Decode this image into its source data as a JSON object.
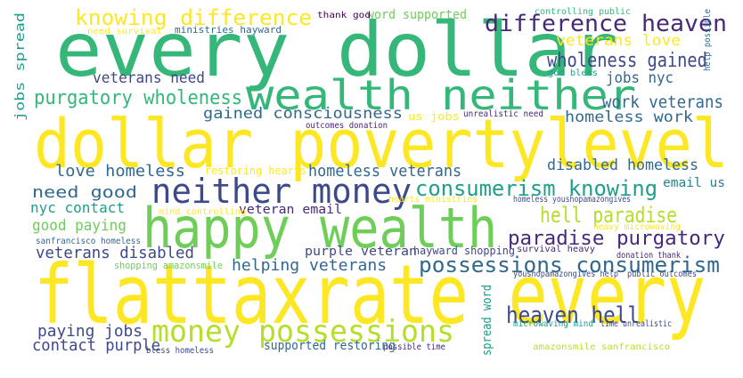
{
  "colors": {
    "background": "#ffffff",
    "palette": [
      "#fde725",
      "#b5de2b",
      "#6ece58",
      "#35b779",
      "#1f9e89",
      "#26828e",
      "#31688e",
      "#3e4989",
      "#482878",
      "#440154"
    ]
  },
  "words": [
    {
      "text": "every dollar",
      "color": "#35b779"
    },
    {
      "text": "dollar povertylevel",
      "color": "#fde725"
    },
    {
      "text": "flattaxrate every",
      "color": "#fde725"
    },
    {
      "text": "happy wealth",
      "color": "#6ece58"
    },
    {
      "text": "wealth neither",
      "color": "#35b779"
    },
    {
      "text": "neither money",
      "color": "#3e4989"
    },
    {
      "text": "money possessions",
      "color": "#b5de2b"
    },
    {
      "text": "knowing difference",
      "color": "#fde725"
    },
    {
      "text": "difference heaven",
      "color": "#482878"
    },
    {
      "text": "consumerism knowing",
      "color": "#1f9e89"
    },
    {
      "text": "possessions consumerism",
      "color": "#31688e"
    },
    {
      "text": "heaven hell",
      "color": "#3e4989"
    },
    {
      "text": "hell paradise",
      "color": "#b5de2b"
    },
    {
      "text": "paradise purgatory",
      "color": "#482878"
    },
    {
      "text": "purgatory wholeness",
      "color": "#35b779"
    },
    {
      "text": "wholeness gained",
      "color": "#3e4989"
    },
    {
      "text": "veterans love",
      "color": "#fde725"
    },
    {
      "text": "veterans need",
      "color": "#3e4989"
    },
    {
      "text": "jobs nyc",
      "color": "#31688e"
    },
    {
      "text": "work veterans",
      "color": "#31688e"
    },
    {
      "text": "gained consciousness",
      "color": "#31688e"
    },
    {
      "text": "homeless work",
      "color": "#31688e"
    },
    {
      "text": "disabled homeless",
      "color": "#31688e"
    },
    {
      "text": "love homeless",
      "color": "#31688e"
    },
    {
      "text": "homeless veterans",
      "color": "#31688e"
    },
    {
      "text": "need good",
      "color": "#31688e"
    },
    {
      "text": "nyc contact",
      "color": "#1f9e89"
    },
    {
      "text": "good paying",
      "color": "#6ece58"
    },
    {
      "text": "veterans disabled",
      "color": "#3e4989"
    },
    {
      "text": "helping veterans",
      "color": "#31688e"
    },
    {
      "text": "paying jobs",
      "color": "#3e4989"
    },
    {
      "text": "contact purple",
      "color": "#3e4989"
    },
    {
      "text": "jobs spread",
      "color": "#1f9e89"
    },
    {
      "text": "spread word",
      "color": "#1f9e89"
    },
    {
      "text": "veteran email",
      "color": "#482878"
    },
    {
      "text": "purple veteran",
      "color": "#3e4989"
    },
    {
      "text": "email us",
      "color": "#26828e"
    },
    {
      "text": "word supported",
      "color": "#6ece58"
    },
    {
      "text": "supported restoring",
      "color": "#31688e"
    },
    {
      "text": "thank god",
      "color": "#440154"
    },
    {
      "text": "controlling public",
      "color": "#35b779"
    },
    {
      "text": "help possible",
      "color": "#31688e"
    },
    {
      "text": "need survival",
      "color": "#fde725"
    },
    {
      "text": "ministries hayward",
      "color": "#31688e"
    },
    {
      "text": "god bless",
      "color": "#1f9e89"
    },
    {
      "text": "us jobs",
      "color": "#fde725"
    },
    {
      "text": "unrealistic need",
      "color": "#482878"
    },
    {
      "text": "outcomes donation",
      "color": "#482878"
    },
    {
      "text": "restoring hearts",
      "color": "#fde725"
    },
    {
      "text": "mind controlling",
      "color": "#fde725"
    },
    {
      "text": "hearts ministries",
      "color": "#fde725"
    },
    {
      "text": "homeless youshopamazongives",
      "color": "#3e4989"
    },
    {
      "text": "heavy microwaving",
      "color": "#fde725"
    },
    {
      "text": "sanfrancisco homeless",
      "color": "#31688e"
    },
    {
      "text": "survival heavy",
      "color": "#482878"
    },
    {
      "text": "donation thank",
      "color": "#482878"
    },
    {
      "text": "shopping amazonsmile",
      "color": "#6ece58"
    },
    {
      "text": "hayward shopping",
      "color": "#3e4989"
    },
    {
      "text": "youshopamazongives help",
      "color": "#3e4989"
    },
    {
      "text": "public outcomes",
      "color": "#3e4989"
    },
    {
      "text": "microwaving mind",
      "color": "#1f9e89"
    },
    {
      "text": "time unrealistic",
      "color": "#3e4989"
    },
    {
      "text": "bless homeless",
      "color": "#3e4989"
    },
    {
      "text": "possible time",
      "color": "#482878"
    },
    {
      "text": "amazonsmile sanfrancisco",
      "color": "#b5de2b"
    }
  ]
}
